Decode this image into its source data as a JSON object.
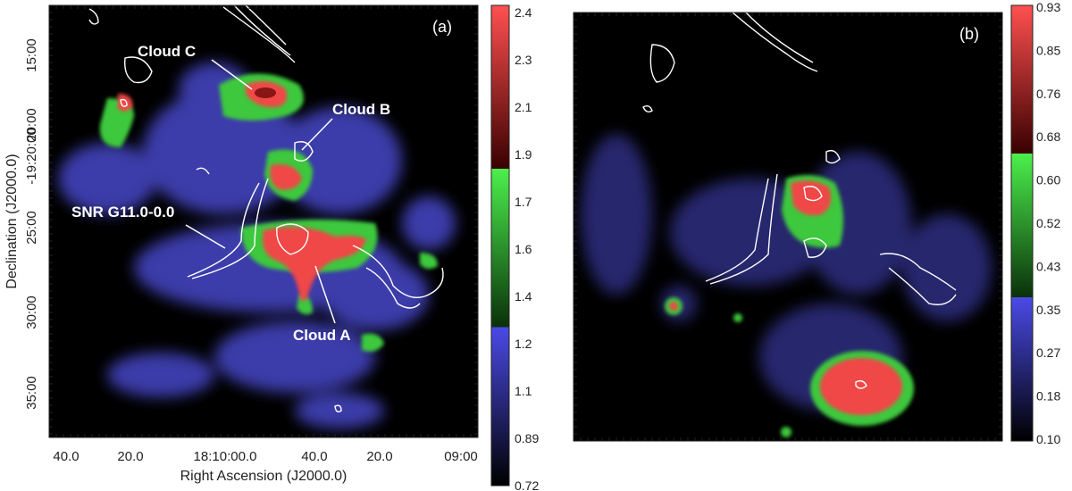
{
  "panel_a": {
    "label": "(a)",
    "xlabel": "Right Ascension (J2000.0)",
    "ylabel": "Declination (J2000.0)",
    "x_ticks": [
      "40.0",
      "20.0",
      "18:10:00.0",
      "40.0",
      "20.0",
      "09:00"
    ],
    "y_ticks": [
      "15:00",
      "-19:20:00",
      "25:00",
      "30:00",
      "35:00",
      "20:00"
    ],
    "y_ticks_ordered": [
      "15:00",
      "20:00",
      "-19:20:00",
      "25:00",
      "30:00",
      "35:00"
    ],
    "annotations": {
      "cloud_c": "Cloud C",
      "cloud_b": "Cloud B",
      "snr": "SNR G11.0-0.0",
      "cloud_a": "Cloud A"
    },
    "colorbar_ticks": [
      "2.4",
      "2.3",
      "2.1",
      "1.9",
      "1.7",
      "1.6",
      "1.4",
      "1.2",
      "1.1",
      "0.89",
      "0.72"
    ]
  },
  "panel_b": {
    "label": "(b)",
    "colorbar_ticks": [
      "0.93",
      "0.85",
      "0.76",
      "0.68",
      "0.60",
      "0.52",
      "0.43",
      "0.35",
      "0.27",
      "0.18",
      "0.10"
    ]
  },
  "colors": {
    "background": "#000000",
    "blue": "#4646c8",
    "green": "#3cc83c",
    "red": "#f04646",
    "darkred": "#6e0a0a",
    "contour": "#ffffff"
  }
}
